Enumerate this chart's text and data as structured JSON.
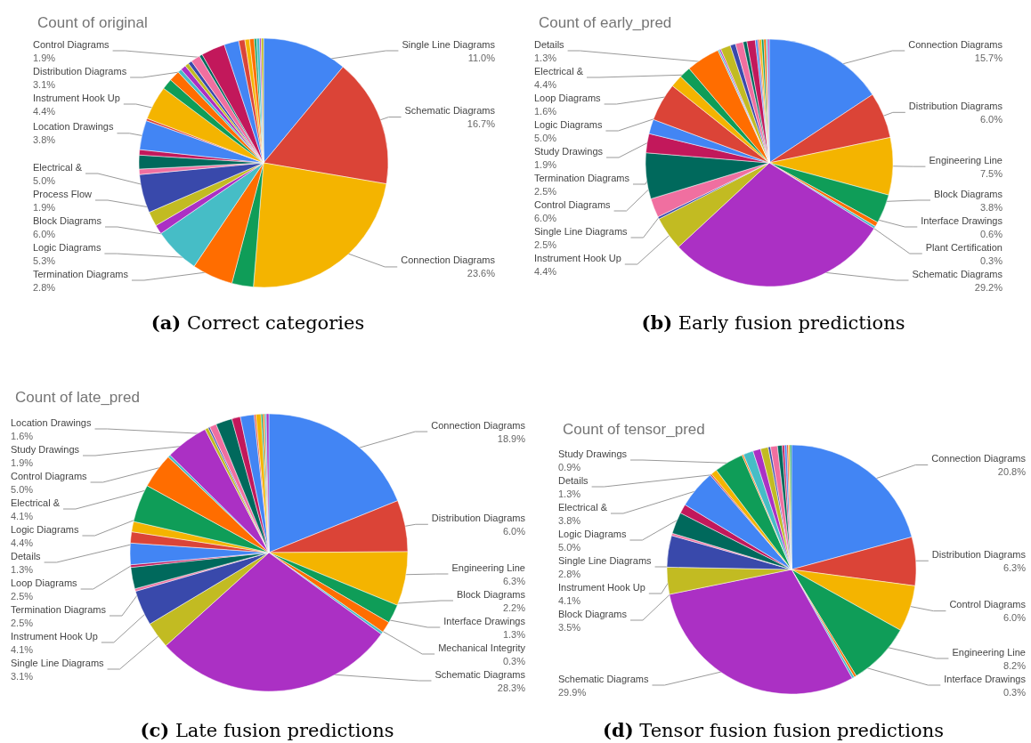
{
  "chart_data": [
    {
      "type": "pie",
      "title": "Count of original",
      "annotations": [
        "(a) Correct categories"
      ],
      "categories": [
        "Single Line Diagrams",
        "Schematic Diagrams",
        "Connection Diagrams",
        "Termination Diagrams",
        "Logic Diagrams",
        "Block Diagrams",
        null,
        "Process Flow",
        "Electrical &",
        null,
        null,
        null,
        "Location Drawings",
        null,
        "Instrument Hook Up",
        null,
        null,
        null,
        null,
        null,
        null,
        null,
        null,
        "Distribution Diagrams",
        "Control Diagrams",
        null,
        null,
        null,
        null,
        null,
        null,
        null
      ],
      "values": [
        11.0,
        16.7,
        23.6,
        2.8,
        5.3,
        6.0,
        1.2,
        1.9,
        5.0,
        0.7,
        1.8,
        0.7,
        3.8,
        0.3,
        4.4,
        1.4,
        1.4,
        0.5,
        0.7,
        0.5,
        0.5,
        1.2,
        0.4,
        3.1,
        1.9,
        0.8,
        0.6,
        0.6,
        0.3,
        0.4,
        0.2,
        0.3
      ],
      "value_labels": [
        "11.0%",
        "16.7%",
        "23.6%",
        "2.8%",
        "5.3%",
        "6.0%",
        null,
        "1.9%",
        "5.0%",
        null,
        null,
        null,
        "3.8%",
        null,
        "4.4%",
        null,
        null,
        null,
        null,
        null,
        null,
        null,
        null,
        "3.1%",
        "1.9%",
        null,
        null,
        null,
        null,
        null,
        null,
        null
      ],
      "colors": [
        "#4285f4",
        "#db4437",
        "#f4b400",
        "#0f9d58",
        "#ff6d00",
        "#46bdc6",
        "#ab30c4",
        "#c2bb22",
        "#3949ab",
        "#f06fa0",
        "#00695c",
        "#c2185b",
        "#4285f4",
        "#db4437",
        "#f4b400",
        "#0f9d58",
        "#ff6d00",
        "#46bdc6",
        "#ab30c4",
        "#c2bb22",
        "#3949ab",
        "#f06fa0",
        "#00695c",
        "#c2185b",
        "#4285f4",
        "#db4437",
        "#f4b400",
        "#ff6d00",
        "#0f9d58",
        "#46bdc6",
        "#ab30c4",
        "#c2bb22"
      ]
    },
    {
      "type": "pie",
      "title": "Count of early_pred",
      "annotations": [
        "(b) Early fusion predictions"
      ],
      "categories": [
        "Connection Diagrams",
        "Distribution Diagrams",
        "Engineering Line",
        "Block Diagrams",
        "Interface Drawings",
        "Plant Certification",
        "Schematic Diagrams",
        "Instrument Hook Up",
        null,
        "Single Line Diagrams",
        "Control Diagrams",
        "Termination Diagrams",
        "Study Drawings",
        "Logic Diagrams",
        "Loop Diagrams",
        null,
        "Electrical &",
        null,
        null,
        "Details",
        null,
        null,
        null,
        null,
        null,
        null,
        null,
        null,
        null,
        null,
        null
      ],
      "values": [
        15.7,
        6.0,
        7.5,
        3.8,
        0.6,
        0.3,
        29.2,
        4.4,
        0.3,
        2.5,
        6.0,
        2.5,
        1.9,
        5.0,
        1.6,
        1.5,
        4.4,
        0.2,
        0.2,
        1.3,
        0.7,
        1.0,
        0.5,
        1.1,
        0.3,
        0.2,
        0.3,
        0.3,
        0.3,
        0.2,
        0.2
      ],
      "value_labels": [
        "15.7%",
        "6.0%",
        "7.5%",
        "3.8%",
        "0.6%",
        "0.3%",
        "29.2%",
        "4.4%",
        null,
        "2.5%",
        "6.0%",
        "2.5%",
        "1.9%",
        "5.0%",
        "1.6%",
        null,
        "4.4%",
        null,
        null,
        "1.3%",
        null,
        null,
        null,
        null,
        null,
        null,
        null,
        null,
        null,
        null,
        null
      ],
      "colors": [
        "#4285f4",
        "#db4437",
        "#f4b400",
        "#0f9d58",
        "#ff6d00",
        "#46bdc6",
        "#ab30c4",
        "#c2bb22",
        "#3949ab",
        "#f06fa0",
        "#00695c",
        "#c2185b",
        "#4285f4",
        "#db4437",
        "#f4b400",
        "#0f9d58",
        "#ff6d00",
        "#46bdc6",
        "#ab30c4",
        "#c2bb22",
        "#3949ab",
        "#f06fa0",
        "#00695c",
        "#c2185b",
        "#4285f4",
        "#db4437",
        "#f4b400",
        "#0f9d58",
        "#ff6d00",
        "#46bdc6",
        "#ab30c4"
      ]
    },
    {
      "type": "pie",
      "title": "Count of late_pred",
      "annotations": [
        "(c) Late fusion predictions"
      ],
      "categories": [
        "Connection Diagrams",
        "Distribution Diagrams",
        "Engineering Line",
        "Block Diagrams",
        "Interface Drawings",
        "Mechanical Integrity",
        "Schematic Diagrams",
        "Single Line Diagrams",
        "Instrument Hook Up",
        null,
        "Termination Diagrams",
        null,
        "Loop Diagrams",
        "Details",
        null,
        "Logic Diagrams",
        "Electrical &",
        null,
        "Control Diagrams",
        null,
        null,
        null,
        "Study Drawings",
        null,
        "Location Drawings",
        null,
        null,
        null,
        null,
        null,
        null
      ],
      "values": [
        18.9,
        6.0,
        6.3,
        2.2,
        1.3,
        0.3,
        28.3,
        3.1,
        4.1,
        0.3,
        2.5,
        0.3,
        2.5,
        1.3,
        1.2,
        4.4,
        4.1,
        0.3,
        5.0,
        0.4,
        0.2,
        0.8,
        1.9,
        1.0,
        1.6,
        0.2,
        0.6,
        0.2,
        0.2,
        0.2,
        0.3
      ],
      "value_labels": [
        "18.9%",
        "6.0%",
        "6.3%",
        "2.2%",
        "1.3%",
        "0.3%",
        "28.3%",
        "3.1%",
        "4.1%",
        null,
        "2.5%",
        null,
        "2.5%",
        "1.3%",
        null,
        "4.4%",
        "4.1%",
        null,
        "5.0%",
        null,
        null,
        null,
        "1.9%",
        null,
        "1.6%",
        null,
        null,
        null,
        null,
        null,
        null
      ],
      "colors": [
        "#4285f4",
        "#db4437",
        "#f4b400",
        "#0f9d58",
        "#ff6d00",
        "#46bdc6",
        "#ab30c4",
        "#c2bb22",
        "#3949ab",
        "#f06fa0",
        "#00695c",
        "#c2185b",
        "#4285f4",
        "#db4437",
        "#f4b400",
        "#0f9d58",
        "#ff6d00",
        "#46bdc6",
        "#ab30c4",
        "#c2bb22",
        "#3949ab",
        "#f06fa0",
        "#00695c",
        "#c2185b",
        "#4285f4",
        "#db4437",
        "#f4b400",
        "#0f9d58",
        "#ff6d00",
        "#46bdc6",
        "#ab30c4"
      ]
    },
    {
      "type": "pie",
      "title": "Count of tensor_pred",
      "annotations": [
        "(d) Tensor fusion fusion predictions"
      ],
      "categories": [
        "Connection Diagrams",
        "Distribution Diagrams",
        "Control Diagrams",
        "Engineering Line",
        null,
        "Interface Drawings",
        "Schematic Diagrams",
        "Block Diagrams",
        "Instrument Hook Up",
        null,
        "Single Line Diagrams",
        null,
        "Logic Diagrams",
        null,
        null,
        "Electrical &",
        null,
        "Details",
        null,
        null,
        null,
        "Study Drawings",
        null,
        null,
        null,
        null,
        null,
        null
      ],
      "values": [
        20.8,
        6.3,
        6.0,
        8.2,
        0.3,
        0.3,
        29.9,
        3.5,
        4.1,
        0.3,
        2.8,
        1.2,
        5.0,
        0.2,
        0.8,
        3.8,
        0.2,
        1.3,
        1.0,
        1.0,
        0.3,
        0.9,
        0.6,
        0.3,
        0.3,
        0.2,
        0.2,
        0.2
      ],
      "value_labels": [
        "20.8%",
        "6.3%",
        "6.0%",
        "8.2%",
        null,
        "0.3%",
        "29.9%",
        "3.5%",
        "4.1%",
        null,
        "2.8%",
        null,
        "5.0%",
        null,
        null,
        "3.8%",
        null,
        "1.3%",
        null,
        null,
        null,
        "0.9%",
        null,
        null,
        null,
        null,
        null,
        null
      ],
      "colors": [
        "#4285f4",
        "#db4437",
        "#f4b400",
        "#0f9d58",
        "#ff6d00",
        "#46bdc6",
        "#ab30c4",
        "#c2bb22",
        "#3949ab",
        "#f06fa0",
        "#00695c",
        "#c2185b",
        "#4285f4",
        "#db4437",
        "#f4b400",
        "#0f9d58",
        "#ff6d00",
        "#46bdc6",
        "#ab30c4",
        "#c2bb22",
        "#3949ab",
        "#f06fa0",
        "#00695c",
        "#c2185b",
        "#4285f4",
        "#db4437",
        "#f4b400",
        "#0f9d58"
      ]
    }
  ]
}
